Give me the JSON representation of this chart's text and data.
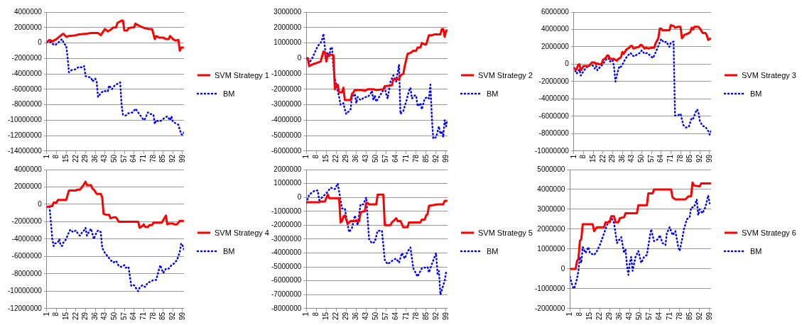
{
  "chart_data": [
    {
      "type": "line",
      "xlim": [
        1,
        100
      ],
      "xticks": [
        1,
        8,
        15,
        22,
        29,
        36,
        43,
        50,
        57,
        64,
        71,
        78,
        85,
        92,
        99
      ],
      "ylim": [
        -14000000,
        4000000
      ],
      "yticks": [
        -14000000,
        -12000000,
        -10000000,
        -8000000,
        -6000000,
        -4000000,
        -2000000,
        0,
        2000000,
        4000000
      ],
      "grid": "y",
      "legend": "right",
      "marker": "none",
      "series": [
        {
          "name": "SVM Strategy 1",
          "color": "#ff0000",
          "line_style": "solid",
          "x": [
            1,
            3,
            5,
            8,
            12,
            13,
            15,
            17,
            22,
            24,
            30,
            33,
            38,
            40,
            43,
            45,
            47,
            49,
            51,
            52,
            55,
            56,
            57,
            59,
            60,
            62,
            64,
            65,
            67,
            69,
            72,
            75,
            77,
            79,
            80,
            82,
            85,
            87,
            89,
            90,
            92,
            94,
            96,
            97,
            98,
            100
          ],
          "values": [
            100000,
            400000,
            200000,
            500000,
            1100000,
            1200000,
            800000,
            900000,
            1000000,
            1100000,
            1200000,
            1300000,
            1300000,
            1000000,
            1800000,
            1500000,
            1700000,
            2000000,
            2000000,
            2600000,
            2900000,
            2900000,
            1600000,
            1600000,
            1900000,
            2000000,
            2000000,
            2500000,
            2300000,
            2100000,
            1900000,
            1800000,
            1800000,
            500000,
            900000,
            700000,
            700000,
            500000,
            500000,
            900000,
            500000,
            300000,
            400000,
            -1000000,
            -600000,
            -600000
          ]
        },
        {
          "name": "BM",
          "color": "#0000ff",
          "line_style": "dotted",
          "x": [
            1,
            3,
            5,
            7,
            9,
            12,
            13,
            14,
            15,
            16,
            17,
            19,
            22,
            24,
            27,
            28,
            29,
            31,
            33,
            34,
            36,
            37,
            38,
            40,
            42,
            45,
            46,
            48,
            50,
            52,
            54,
            55,
            56,
            58,
            60,
            63,
            65,
            67,
            69,
            71,
            72,
            74,
            76,
            78,
            79,
            80,
            82,
            84,
            86,
            88,
            90,
            91,
            92,
            94,
            96,
            98,
            99,
            100
          ],
          "values": [
            100000,
            200000,
            -100000,
            -300000,
            0,
            500000,
            100000,
            -200000,
            -300000,
            -1800000,
            -3800000,
            -3500000,
            -3400000,
            -3100000,
            -3200000,
            -3000000,
            -4300000,
            -4400000,
            -4500000,
            -5000000,
            -4600000,
            -5000000,
            -7000000,
            -6500000,
            -6200000,
            -6300000,
            -5500000,
            -6000000,
            -5500000,
            -5300000,
            -5100000,
            -8000000,
            -9300000,
            -9400000,
            -9100000,
            -9000000,
            -8500000,
            -9000000,
            -9500000,
            -10000000,
            -9800000,
            -9000000,
            -9200000,
            -9300000,
            -10500000,
            -10000000,
            -10200000,
            -10000000,
            -9700000,
            -9500000,
            -10000000,
            -9500000,
            -10200000,
            -10400000,
            -10600000,
            -11800000,
            -11900000,
            -11600000
          ]
        }
      ]
    },
    {
      "type": "line",
      "xlim": [
        1,
        100
      ],
      "xticks": [
        1,
        8,
        15,
        22,
        29,
        36,
        43,
        50,
        57,
        64,
        71,
        78,
        85,
        92,
        99
      ],
      "ylim": [
        -6000000,
        3000000
      ],
      "yticks": [
        -6000000,
        -5000000,
        -4000000,
        -3000000,
        -2000000,
        -1000000,
        0,
        1000000,
        2000000,
        3000000
      ],
      "grid": "y",
      "legend": "right",
      "marker": "none",
      "series": [
        {
          "name": "SVM Strategy 2",
          "color": "#ff0000",
          "line_style": "solid",
          "x": [
            1,
            2,
            3,
            5,
            8,
            11,
            13,
            14,
            15,
            16,
            18,
            20,
            21,
            22,
            23,
            24,
            26,
            27,
            28,
            32,
            33,
            34,
            35,
            40,
            42,
            44,
            48,
            50,
            55,
            56,
            61,
            62,
            66,
            67,
            69,
            70,
            72,
            74,
            76,
            78,
            79,
            81,
            82,
            84,
            85,
            87,
            89,
            91,
            95,
            96,
            97,
            98,
            99,
            100
          ],
          "values": [
            0,
            0,
            -500000,
            -400000,
            -300000,
            -200000,
            450000,
            400000,
            -200000,
            200000,
            250000,
            200000,
            -2000000,
            -1800000,
            -1700000,
            -2200000,
            -2200000,
            -1900000,
            -2700000,
            -2700000,
            -2300000,
            -2200000,
            -2050000,
            -2050000,
            -2100000,
            -2000000,
            -2000000,
            -2050000,
            -2000000,
            -1800000,
            -1750000,
            -1350000,
            -1350000,
            -1100000,
            -1000000,
            -500000,
            300000,
            350000,
            500000,
            500000,
            700000,
            700000,
            1000000,
            900000,
            900000,
            1500000,
            1500000,
            1550000,
            1550000,
            1900000,
            1900000,
            1400000,
            1800000,
            1800000
          ]
        },
        {
          "name": "BM",
          "color": "#0000ff",
          "line_style": "dotted",
          "x": [
            1,
            2,
            3,
            5,
            7,
            9,
            10,
            11,
            12,
            13,
            14,
            15,
            16,
            17,
            18,
            19,
            20,
            21,
            22,
            24,
            25,
            27,
            28,
            29,
            31,
            32,
            33,
            35,
            36,
            37,
            39,
            42,
            44,
            46,
            47,
            48,
            49,
            50,
            52,
            54,
            56,
            57,
            58,
            60,
            62,
            64,
            66,
            67,
            69,
            71,
            73,
            74,
            75,
            77,
            78,
            79,
            81,
            82,
            84,
            86,
            87,
            88,
            89,
            90,
            92,
            94,
            95,
            96,
            97,
            98,
            99,
            100
          ],
          "values": [
            0,
            100000,
            -300000,
            0,
            400000,
            800000,
            900000,
            1000000,
            1200000,
            1600000,
            700000,
            0,
            400000,
            100000,
            700000,
            700000,
            -600000,
            -1300000,
            -1700000,
            -2500000,
            -3000000,
            -2900000,
            -3300000,
            -3600000,
            -3400000,
            -3300000,
            -2500000,
            -2300000,
            -2900000,
            -2500000,
            -2700000,
            -2500000,
            -2500000,
            -2300000,
            -2100000,
            -2700000,
            -2400000,
            -2800000,
            -2500000,
            -2200000,
            -1900000,
            -2300000,
            -2600000,
            -1500000,
            -1100000,
            -1500000,
            -400000,
            -3600000,
            -3400000,
            -2800000,
            -2100000,
            -1900000,
            -2600000,
            -2400000,
            -2400000,
            -3100000,
            -2900000,
            -3300000,
            -2600000,
            -2500000,
            -2600000,
            -1700000,
            -3800000,
            -5200000,
            -5100000,
            -4400000,
            -4900000,
            -4700000,
            -5100000,
            -4000000,
            -4400000,
            -4000000
          ]
        }
      ]
    },
    {
      "type": "line",
      "xlim": [
        1,
        100
      ],
      "xticks": [
        1,
        8,
        15,
        22,
        29,
        36,
        43,
        50,
        57,
        64,
        71,
        78,
        85,
        92,
        99
      ],
      "ylim": [
        -10000000,
        6000000
      ],
      "yticks": [
        -10000000,
        -8000000,
        -6000000,
        -4000000,
        -2000000,
        0,
        2000000,
        4000000,
        6000000
      ],
      "grid": "y",
      "legend": "right",
      "marker": "none",
      "series": [
        {
          "name": "SVM Strategy 3",
          "color": "#ff0000",
          "line_style": "solid",
          "x": [
            1,
            3,
            4,
            5,
            6,
            7,
            8,
            12,
            14,
            16,
            17,
            18,
            19,
            21,
            22,
            24,
            25,
            26,
            27,
            30,
            32,
            33,
            35,
            36,
            37,
            39,
            41,
            42,
            43,
            44,
            46,
            48,
            49,
            50,
            52,
            53,
            55,
            57,
            59,
            60,
            62,
            63,
            64,
            65,
            70,
            71,
            73,
            74,
            76,
            78,
            79,
            81,
            83,
            85,
            86,
            87,
            88,
            91,
            92,
            94,
            96,
            97,
            98,
            99,
            100
          ],
          "values": [
            -500000,
            -600000,
            -100000,
            0,
            -700000,
            -500000,
            -200000,
            -200000,
            200000,
            200000,
            0,
            100000,
            0,
            0,
            500000,
            700000,
            1000000,
            1000000,
            600000,
            600000,
            400000,
            600000,
            800000,
            1400000,
            1200000,
            1700000,
            1900000,
            2100000,
            2100000,
            1800000,
            1900000,
            2000000,
            2200000,
            2200000,
            1800000,
            1900000,
            1800000,
            1900000,
            1900000,
            2400000,
            3000000,
            4100000,
            4100000,
            3900000,
            3900000,
            4500000,
            4400000,
            4200000,
            4300000,
            4300000,
            3000000,
            3400000,
            3500000,
            3700000,
            4200000,
            4000000,
            4300000,
            4300000,
            4100000,
            3600000,
            3600000,
            3300000,
            2800000,
            2900000,
            3000000
          ]
        },
        {
          "name": "BM",
          "color": "#0000ff",
          "line_style": "dotted",
          "x": [
            1,
            3,
            5,
            6,
            8,
            10,
            13,
            15,
            16,
            17,
            18,
            20,
            22,
            24,
            26,
            27,
            29,
            30,
            31,
            32,
            33,
            34,
            35,
            37,
            38,
            40,
            42,
            43,
            45,
            47,
            49,
            50,
            52,
            54,
            56,
            58,
            59,
            61,
            63,
            64,
            66,
            68,
            69,
            70,
            71,
            73,
            74,
            76,
            78,
            80,
            82,
            84,
            86,
            87,
            89,
            90,
            91,
            92,
            94,
            96,
            98,
            99,
            100
          ],
          "values": [
            -400000,
            -1100000,
            -600000,
            -1300000,
            -800000,
            -400000,
            0,
            -200000,
            -500000,
            -200000,
            -700000,
            -300000,
            0,
            500000,
            700000,
            300000,
            500000,
            -300000,
            -2000000,
            -1300000,
            -700000,
            -200000,
            -300000,
            200000,
            600000,
            1000000,
            1300000,
            1000000,
            900000,
            1200000,
            1300000,
            1600000,
            1200000,
            1300000,
            1000000,
            700000,
            1000000,
            1700000,
            2500000,
            2900000,
            2500000,
            2600000,
            2200000,
            2000000,
            2500000,
            2600000,
            -5900000,
            -5900000,
            -5700000,
            -7000000,
            -7300000,
            -7200000,
            -6200000,
            -6300000,
            -5500000,
            -5200000,
            -5600000,
            -6600000,
            -7100000,
            -7200000,
            -7700000,
            -8100000,
            -7700000
          ]
        }
      ]
    },
    {
      "type": "line",
      "xlim": [
        1,
        100
      ],
      "xticks": [
        1,
        8,
        15,
        22,
        29,
        36,
        43,
        50,
        57,
        64,
        71,
        78,
        85,
        92,
        99
      ],
      "ylim": [
        -12000000,
        4000000
      ],
      "yticks": [
        -12000000,
        -10000000,
        -8000000,
        -6000000,
        -4000000,
        -2000000,
        0,
        2000000,
        4000000
      ],
      "grid": "y",
      "legend": "right",
      "marker": "none",
      "series": [
        {
          "name": "SVM Strategy 4",
          "color": "#ff0000",
          "line_style": "solid",
          "x": [
            1,
            4,
            5,
            6,
            8,
            9,
            15,
            17,
            22,
            23,
            25,
            27,
            29,
            30,
            33,
            34,
            35,
            37,
            40,
            41,
            42,
            44,
            46,
            47,
            49,
            51,
            53,
            60,
            67,
            68,
            70,
            71,
            72,
            74,
            75,
            77,
            78,
            84,
            87,
            88,
            89,
            92,
            93,
            95,
            97,
            100
          ],
          "values": [
            -300000,
            -200000,
            -200000,
            200000,
            200000,
            500000,
            500000,
            1600000,
            1600000,
            1700000,
            1700000,
            2100000,
            2600000,
            2200000,
            2200000,
            1800000,
            1700000,
            1200000,
            1200000,
            800000,
            -1100000,
            -1200000,
            -1200000,
            -1600000,
            -1500000,
            -1500000,
            -2000000,
            -2000000,
            -2000000,
            -2700000,
            -2500000,
            -2300000,
            -2600000,
            -2600000,
            -2400000,
            -2400000,
            -2100000,
            -2100000,
            -1300000,
            -2300000,
            -2200000,
            -2200000,
            -2300000,
            -2300000,
            -1900000,
            -1900000
          ]
        },
        {
          "name": "BM",
          "color": "#0000ff",
          "line_style": "dotted",
          "x": [
            1,
            3,
            5,
            6,
            7,
            9,
            10,
            11,
            12,
            13,
            15,
            17,
            18,
            20,
            22,
            24,
            25,
            27,
            28,
            29,
            30,
            31,
            32,
            33,
            34,
            35,
            36,
            37,
            38,
            40,
            41,
            43,
            45,
            47,
            49,
            51,
            53,
            55,
            57,
            58,
            60,
            62,
            64,
            66,
            67,
            68,
            70,
            72,
            74,
            76,
            78,
            80,
            82,
            83,
            85,
            86,
            87,
            89,
            91,
            93,
            95,
            97,
            98,
            99,
            100
          ],
          "values": [
            -300000,
            -200000,
            -4000000,
            -4800000,
            -4500000,
            -4400000,
            -4000000,
            -4700000,
            -4800000,
            -4400000,
            -4000000,
            -3200000,
            -2900000,
            -3200000,
            -3000000,
            -3500000,
            -3600000,
            -3100000,
            -3000000,
            -2700000,
            -3600000,
            -3300000,
            -3000000,
            -2800000,
            -3400000,
            -4000000,
            -3600000,
            -3200000,
            -3000000,
            -3200000,
            -5000000,
            -5600000,
            -6000000,
            -6400000,
            -6700000,
            -6500000,
            -7100000,
            -7200000,
            -7000000,
            -7300000,
            -7200000,
            -9400000,
            -9300000,
            -9800000,
            -10000000,
            -9600000,
            -9300000,
            -9500000,
            -9000000,
            -8900000,
            -8700000,
            -8700000,
            -7500000,
            -7000000,
            -7900000,
            -7700000,
            -7400000,
            -7400000,
            -7000000,
            -6800000,
            -6400000,
            -5500000,
            -4500000,
            -4700000,
            -5200000
          ]
        }
      ]
    },
    {
      "type": "line",
      "xlim": [
        1,
        100
      ],
      "xticks": [
        1,
        8,
        15,
        22,
        29,
        36,
        43,
        50,
        57,
        64,
        71,
        78,
        85,
        92,
        99
      ],
      "ylim": [
        -8000000,
        2000000
      ],
      "yticks": [
        -8000000,
        -7000000,
        -6000000,
        -5000000,
        -4000000,
        -3000000,
        -2000000,
        -1000000,
        0,
        1000000,
        2000000
      ],
      "grid": "y",
      "legend": "right",
      "marker": "none",
      "series": [
        {
          "name": "SVM Strategy 5",
          "color": "#ff0000",
          "line_style": "solid",
          "x": [
            1,
            10,
            11,
            14,
            16,
            17,
            24,
            25,
            26,
            27,
            28,
            30,
            31,
            32,
            38,
            39,
            41,
            42,
            43,
            44,
            45,
            50,
            51,
            52,
            55,
            56,
            60,
            61,
            62,
            63,
            64,
            65,
            67,
            69,
            72,
            73,
            81,
            82,
            84,
            85,
            86,
            87,
            93,
            97,
            98,
            100
          ],
          "values": [
            -350000,
            -350000,
            -300000,
            -300000,
            200000,
            -50000,
            -50000,
            -1800000,
            -1700000,
            -1400000,
            -1300000,
            -1900000,
            -1800000,
            -1700000,
            -1700000,
            -1100000,
            -1000000,
            -1000000,
            -400000,
            -400000,
            -500000,
            -500000,
            200000,
            200000,
            200000,
            -2000000,
            -2000000,
            -1800000,
            -1700000,
            -1600000,
            -1500000,
            -1700000,
            -1700000,
            -2150000,
            -2150000,
            -1800000,
            -1800000,
            -1600000,
            -1600000,
            -1300000,
            -1200000,
            -600000,
            -500000,
            -500000,
            -250000,
            -250000
          ]
        },
        {
          "name": "BM",
          "color": "#0000ff",
          "line_style": "dotted",
          "x": [
            1,
            3,
            7,
            9,
            10,
            13,
            15,
            18,
            21,
            23,
            26,
            28,
            30,
            31,
            33,
            35,
            37,
            39,
            41,
            43,
            45,
            47,
            49,
            51,
            54,
            56,
            58,
            62,
            64,
            66,
            68,
            70,
            72,
            74,
            76,
            79,
            82,
            86,
            87,
            89,
            92,
            93,
            94,
            95,
            98,
            99
          ],
          "values": [
            -400000,
            200000,
            500000,
            500000,
            -200000,
            100000,
            300000,
            700000,
            600000,
            1000000,
            -800000,
            -800000,
            -2000000,
            -2500000,
            -2200000,
            -1300000,
            -2000000,
            -500000,
            -500000,
            0,
            -3000000,
            -3300000,
            -3200000,
            -2400000,
            -2400000,
            -4500000,
            -4800000,
            -4500000,
            -4400000,
            -4700000,
            -4000000,
            -4400000,
            -3900000,
            -3600000,
            -5100000,
            -5700000,
            -5100000,
            -5000000,
            -5400000,
            -4800000,
            -4000000,
            -5500000,
            -5300000,
            -7000000,
            -6000000,
            -5400000
          ]
        }
      ]
    },
    {
      "type": "line",
      "xlim": [
        1,
        100
      ],
      "xticks": [
        1,
        8,
        15,
        22,
        29,
        36,
        43,
        50,
        57,
        64,
        71,
        78,
        85,
        92,
        99
      ],
      "ylim": [
        -2000000,
        5000000
      ],
      "yticks": [
        -2000000,
        -1000000,
        0,
        1000000,
        2000000,
        3000000,
        4000000,
        5000000
      ],
      "grid": "y",
      "legend": "right",
      "marker": "none",
      "series": [
        {
          "name": "SVM Strategy 6",
          "color": "#ff0000",
          "line_style": "solid",
          "x": [
            1,
            5,
            6,
            7,
            8,
            9,
            10,
            17,
            18,
            19,
            20,
            25,
            26,
            29,
            30,
            32,
            33,
            35,
            36,
            39,
            40,
            48,
            49,
            55,
            56,
            59,
            60,
            72,
            73,
            74,
            75,
            82,
            84,
            86,
            87,
            88,
            92,
            93,
            100
          ],
          "values": [
            0,
            0,
            400000,
            500000,
            1400000,
            1500000,
            2250000,
            2250000,
            1900000,
            2000000,
            2100000,
            2100000,
            2350000,
            2350000,
            2650000,
            2650000,
            2350000,
            2350000,
            2550000,
            2600000,
            2800000,
            2800000,
            3200000,
            3200000,
            3800000,
            3800000,
            4000000,
            4000000,
            3600000,
            3550000,
            3500000,
            3500000,
            3650000,
            3650000,
            4350000,
            4200000,
            4150000,
            4300000,
            4300000
          ]
        },
        {
          "name": "BM",
          "color": "#0000ff",
          "line_style": "dotted",
          "x": [
            1,
            3,
            4,
            6,
            7,
            8,
            9,
            10,
            12,
            14,
            15,
            18,
            20,
            22,
            25,
            27,
            30,
            32,
            34,
            36,
            37,
            39,
            40,
            41,
            42,
            43,
            44,
            45,
            47,
            49,
            50,
            51,
            53,
            55,
            57,
            58,
            60,
            63,
            64,
            66,
            68,
            69,
            71,
            73,
            75,
            77,
            78,
            80,
            81,
            83,
            85,
            86,
            88,
            90,
            91,
            92,
            94,
            96,
            97,
            98,
            99
          ],
          "values": [
            -400000,
            -900000,
            -1000000,
            -500000,
            -100000,
            600000,
            300000,
            1100000,
            800000,
            1100000,
            800000,
            700000,
            900000,
            1200000,
            1800000,
            2200000,
            2600000,
            2300000,
            1300000,
            1500000,
            1600000,
            800000,
            1000000,
            200000,
            -300000,
            300000,
            600000,
            -100000,
            600000,
            900000,
            600000,
            300000,
            600000,
            700000,
            1600000,
            2000000,
            1400000,
            1500000,
            1700000,
            1300000,
            1200000,
            1800000,
            2100000,
            1700000,
            1900000,
            1100000,
            900000,
            1600000,
            2000000,
            2500000,
            2600000,
            3100000,
            3100000,
            3500000,
            2700000,
            3000000,
            2800000,
            3100000,
            3400000,
            3700000,
            3300000
          ]
        }
      ]
    }
  ]
}
